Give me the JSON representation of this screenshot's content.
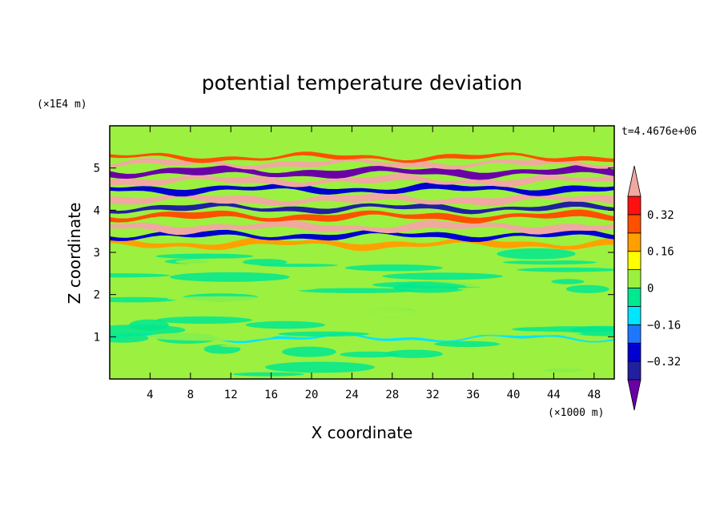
{
  "chart_data": {
    "type": "heatmap",
    "title": "potential temperature deviation",
    "xlabel": "X coordinate",
    "ylabel": "Z coordinate",
    "x_unit": "(×1000 m)",
    "y_unit": "(×1E4 m)",
    "time_label": "t=4.4676e+06",
    "x_range": [
      0,
      50
    ],
    "y_range": [
      0,
      6
    ],
    "x_ticks": [
      "4",
      "8",
      "12",
      "16",
      "20",
      "24",
      "28",
      "32",
      "36",
      "40",
      "44",
      "48"
    ],
    "x_tick_values": [
      4,
      8,
      12,
      16,
      20,
      24,
      28,
      32,
      36,
      40,
      44,
      48
    ],
    "y_ticks": [
      "1",
      "2",
      "3",
      "4",
      "5"
    ],
    "y_tick_values": [
      1,
      2,
      3,
      4,
      5
    ],
    "grid": false,
    "colorbar": {
      "placement": "right",
      "labels": [
        "0.32",
        "0.16",
        "0",
        "-0.16",
        "-0.32"
      ],
      "label_values": [
        0.32,
        0.16,
        0,
        -0.16,
        -0.32
      ],
      "levels": [
        -0.4,
        -0.32,
        -0.24,
        -0.16,
        -0.08,
        0,
        0.08,
        0.16,
        0.24,
        0.32,
        0.4
      ],
      "colors": [
        "#6a00a8",
        "#2020a0",
        "#0000d0",
        "#1e78ff",
        "#00e6ff",
        "#00e890",
        "#9cf040",
        "#ffff00",
        "#ffa000",
        "#ff5000",
        "#ff1010",
        "#f0a8a0"
      ]
    },
    "background_color": "#9cf040",
    "bands": [
      {
        "z_center": 0.97,
        "thickness": 0.05,
        "value": -0.1,
        "description_color": "#00e6ff"
      },
      {
        "z_center": 3.2,
        "thickness": 0.12,
        "value": 0.2
      },
      {
        "z_center": 3.4,
        "thickness": 0.1,
        "value": -0.3
      },
      {
        "z_center": 3.6,
        "thickness": 0.14,
        "value": 0.42
      },
      {
        "z_center": 3.85,
        "thickness": 0.12,
        "value": 0.3
      },
      {
        "z_center": 4.05,
        "thickness": 0.1,
        "value": -0.35
      },
      {
        "z_center": 4.25,
        "thickness": 0.14,
        "value": 0.42
      },
      {
        "z_center": 4.5,
        "thickness": 0.12,
        "value": -0.3
      },
      {
        "z_center": 4.7,
        "thickness": 0.12,
        "value": 0.42
      },
      {
        "z_center": 4.9,
        "thickness": 0.14,
        "value": -0.42
      },
      {
        "z_center": 5.1,
        "thickness": 0.1,
        "value": 0.42
      },
      {
        "z_center": 5.25,
        "thickness": 0.08,
        "value": 0.25
      }
    ]
  }
}
